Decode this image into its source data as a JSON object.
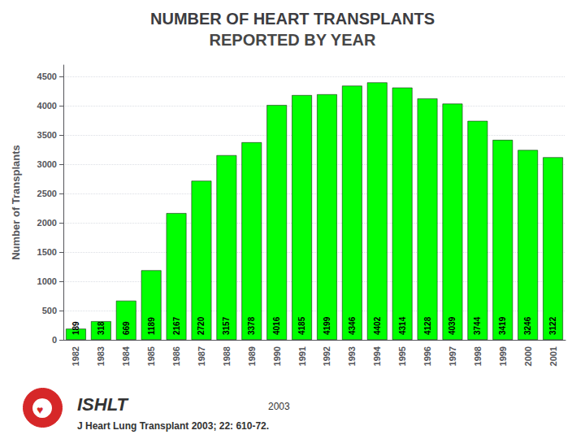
{
  "chart_data": {
    "type": "bar",
    "title": "NUMBER OF HEART TRANSPLANTS",
    "subtitle": "REPORTED BY YEAR",
    "ylabel": "Number of Transplants",
    "categories": [
      "1982",
      "1983",
      "1984",
      "1985",
      "1986",
      "1987",
      "1988",
      "1989",
      "1990",
      "1991",
      "1992",
      "1993",
      "1994",
      "1995",
      "1996",
      "1997",
      "1998",
      "1999",
      "2000",
      "2001"
    ],
    "values": [
      189,
      318,
      669,
      1189,
      2167,
      2720,
      3157,
      3378,
      4016,
      4185,
      4199,
      4346,
      4402,
      4314,
      4128,
      4039,
      3744,
      3419,
      3246,
      3122
    ],
    "color": "#00FF00",
    "ylim": [
      0,
      4700
    ],
    "yticks": [
      0,
      500,
      1000,
      1500,
      2000,
      2500,
      3000,
      3500,
      4000,
      4500
    ],
    "grid": true,
    "data_labels": true,
    "annotations": [
      "♥",
      "ISHLT",
      "2003",
      "J Heart Lung Transplant 2003; 22: 610-72."
    ]
  }
}
